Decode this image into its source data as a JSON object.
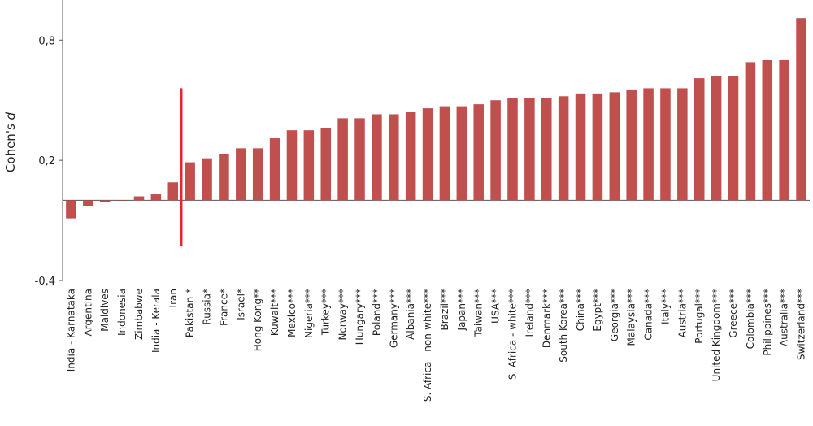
{
  "chart_data": {
    "type": "bar",
    "title": "",
    "xlabel": "",
    "ylabel": "Cohen's",
    "ylabel_italic": "d",
    "ylim": [
      -0.4,
      1.0
    ],
    "yticks": [
      -0.4,
      0.2,
      0.8
    ],
    "ytick_labels": [
      "-0,4",
      "0,2",
      "0,8"
    ],
    "grid": false,
    "bar_color": "#c0504d",
    "marker_line_color": "#e8262a",
    "marker_line_after_category": "Iran",
    "categories": [
      "India - Karnataka",
      "Argentina",
      "Maldives",
      "Indonesia",
      "Zimbabwe",
      "India - Kerala",
      "Iran",
      "Pakistan *",
      "Russia*",
      "France*",
      "Israel*",
      "Hong Kong**",
      "Kuwait***",
      "Mexico***",
      "Nigeria***",
      "Turkey***",
      "Norway***",
      "Hungary***",
      "Poland***",
      "Germany***",
      "Albania***",
      "S. Africa - non-white***",
      "Brazil***",
      "Japan***",
      "Taiwan***",
      "USA***",
      "S. Africa - white***",
      "Ireland***",
      "Denmark***",
      "South Korea***",
      "China***",
      "Egypt***",
      "Georgia***",
      "Malaysia***",
      "Canada***",
      "Italy***",
      "Austria***",
      "Portugal***",
      "United Kingdom***",
      "Greece***",
      "Colombia***",
      "Philippines***",
      "Australia***",
      "Switzerland***"
    ],
    "values": [
      -0.09,
      -0.03,
      -0.01,
      0.0,
      0.02,
      0.03,
      0.09,
      0.19,
      0.21,
      0.23,
      0.26,
      0.26,
      0.31,
      0.35,
      0.35,
      0.36,
      0.41,
      0.41,
      0.43,
      0.43,
      0.44,
      0.46,
      0.47,
      0.47,
      0.48,
      0.5,
      0.51,
      0.51,
      0.51,
      0.52,
      0.53,
      0.53,
      0.54,
      0.55,
      0.56,
      0.56,
      0.56,
      0.61,
      0.62,
      0.62,
      0.69,
      0.7,
      0.7,
      0.91
    ]
  }
}
